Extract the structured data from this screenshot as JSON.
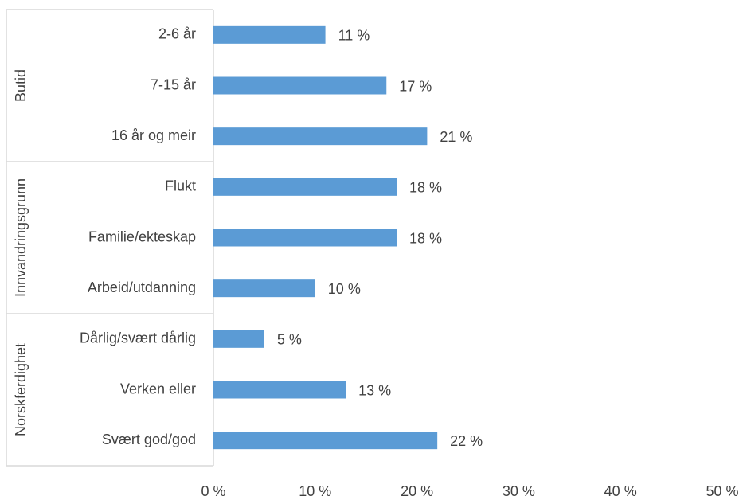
{
  "chart_data": {
    "type": "bar",
    "orientation": "horizontal",
    "groups": [
      {
        "label": "Butid",
        "count": 3
      },
      {
        "label": "Innvandringsgrunn",
        "count": 3
      },
      {
        "label": "Norskferdighet",
        "count": 3
      }
    ],
    "categories": [
      "2-6 år",
      "7-15 år",
      "16 år og meir",
      "Flukt",
      "Familie/ekteskap",
      "Arbeid/utdanning",
      "Dårlig/svært dårlig",
      "Verken eller",
      "Svært god/god"
    ],
    "values": [
      11,
      17,
      21,
      18,
      18,
      10,
      5,
      13,
      22
    ],
    "value_labels": [
      "11 %",
      "17 %",
      "21 %",
      "18 %",
      "18 %",
      "10 %",
      "5 %",
      "13 %",
      "22 %"
    ],
    "color": "#5b9bd5",
    "xlim": [
      0,
      50
    ],
    "xticks": [
      {
        "value": 0,
        "label": "0 %"
      },
      {
        "value": 10,
        "label": "10 %"
      },
      {
        "value": 20,
        "label": "20 %"
      },
      {
        "value": 30,
        "label": "30 %"
      },
      {
        "value": 40,
        "label": "40 %"
      },
      {
        "value": 50,
        "label": "50 %"
      }
    ],
    "grid": false
  }
}
